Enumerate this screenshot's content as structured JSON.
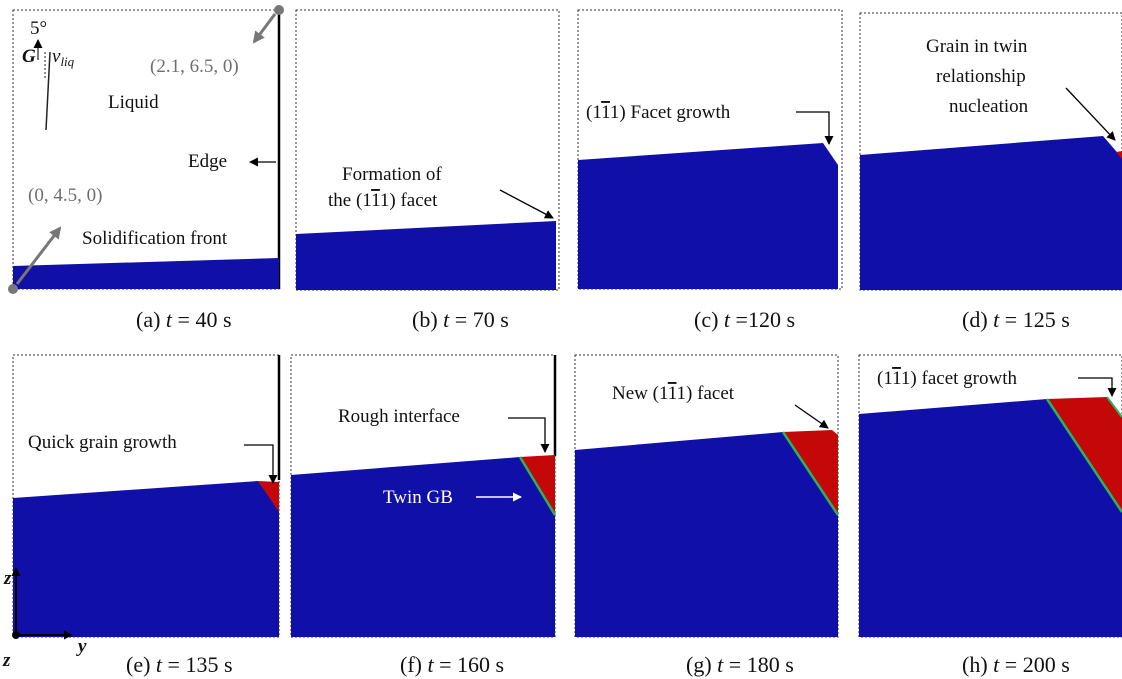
{
  "colors": {
    "solid": "#1010a8",
    "new_grain": "#c40808",
    "twin_gb": "#28b45a",
    "marker": "#777777"
  },
  "panels": [
    {
      "caption_prefix": "(a)",
      "caption_suffix": "= 40 s",
      "angle_label": "5°",
      "g_label": "G",
      "v_label": "v",
      "v_sub": "liq",
      "coord_top": "(2.1, 6.5, 0)",
      "coord_bottom": "(0, 4.5, 0)",
      "liquid_label": "Liquid",
      "edge_label": "Edge",
      "front_label": "Solidification front"
    },
    {
      "caption_prefix": "(b)",
      "caption_suffix": "= 70 s",
      "annot_line1": "Formation of",
      "annot_line2_pre": "the (1",
      "annot_line2_bar": "1",
      "annot_line2_post": "1) facet"
    },
    {
      "caption_prefix": "(c)",
      "caption_suffix": "=120 s",
      "annot_pre": "(1",
      "annot_bar": "1",
      "annot_post": "1) Facet growth"
    },
    {
      "caption_prefix": "(d)",
      "caption_suffix": "= 125 s",
      "annot_line1": "Grain in twin",
      "annot_line2": "relationship",
      "annot_line3": "nucleation"
    },
    {
      "caption_prefix": "(e)",
      "caption_suffix": "= 135 s",
      "annot": "Quick grain growth",
      "axis_z": "z",
      "axis_y": "y",
      "axis_x": "z"
    },
    {
      "caption_prefix": "(f)",
      "caption_suffix": "= 160 s",
      "annot": "Rough interface",
      "twin_label": "Twin GB"
    },
    {
      "caption_prefix": "(g)",
      "caption_suffix": "= 180 s",
      "annot_pre": "New (1",
      "annot_bar": "1",
      "annot_post": "1) facet"
    },
    {
      "caption_prefix": "(h)",
      "caption_suffix": "= 200 s",
      "annot_pre": "(1",
      "annot_bar": "1",
      "annot_post": "1) facet growth"
    }
  ],
  "caption_time_symbol": "t"
}
